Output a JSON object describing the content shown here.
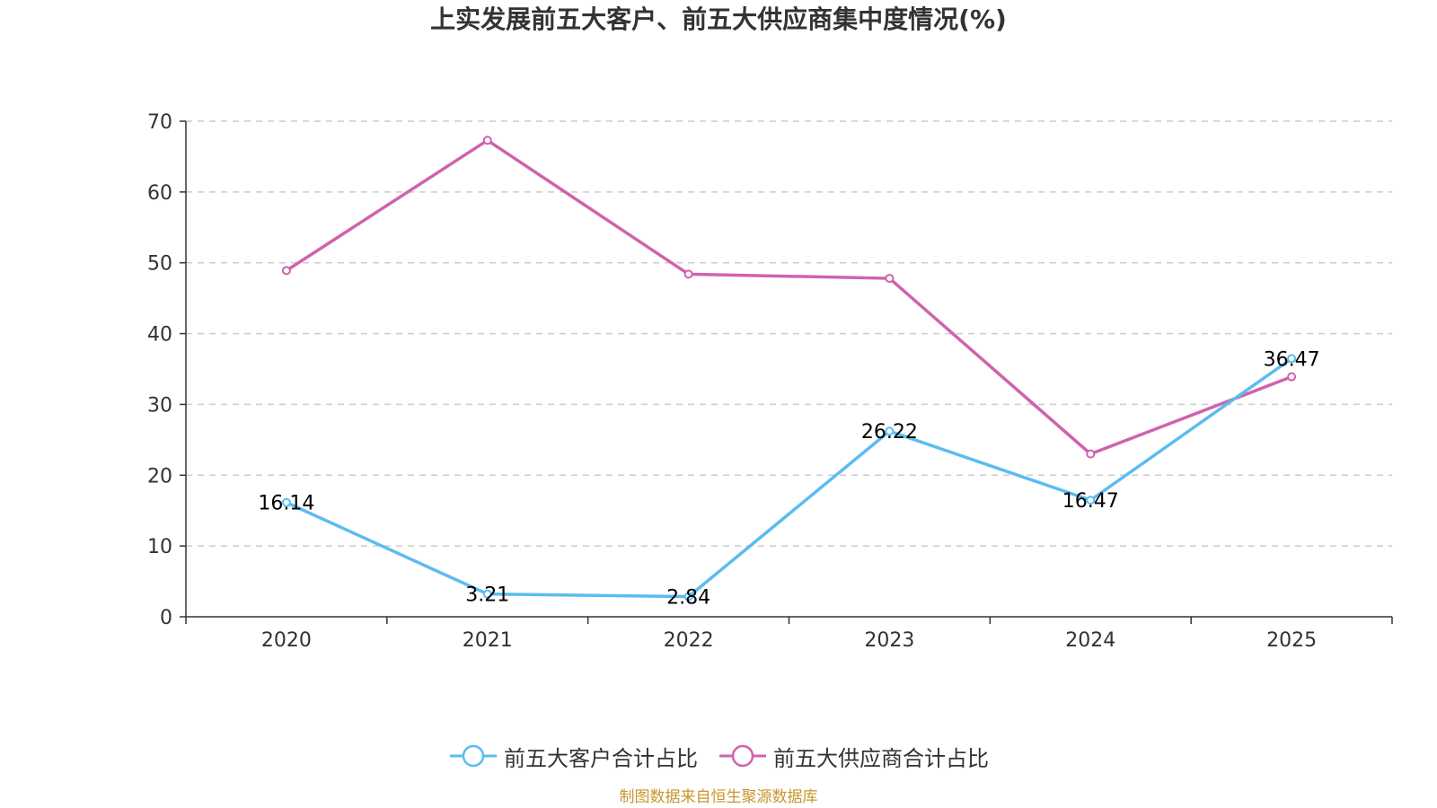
{
  "chart_data": {
    "type": "line",
    "title": "上实发展前五大客户、前五大供应商集中度情况(%)",
    "categories": [
      "2020",
      "2021",
      "2022",
      "2023",
      "2024",
      "2025"
    ],
    "ylim": [
      0,
      70
    ],
    "yticks": [
      0,
      10,
      20,
      30,
      40,
      50,
      60,
      70
    ],
    "grid": true,
    "legend_position": "bottom",
    "series": [
      {
        "name": "前五大客户合计占比",
        "color": "#5bbcf0",
        "values": [
          16.14,
          3.21,
          2.84,
          26.22,
          16.47,
          36.47
        ],
        "labels": [
          "16.14",
          "3.21",
          "2.84",
          "26.22",
          "16.47",
          "36.47"
        ],
        "show_labels": true
      },
      {
        "name": "前五大供应商合计占比",
        "color": "#d062ae",
        "values": [
          48.9,
          67.3,
          48.4,
          47.8,
          23.0,
          33.9
        ],
        "show_labels": false
      }
    ]
  },
  "source": "制图数据来自恒生聚源数据库"
}
